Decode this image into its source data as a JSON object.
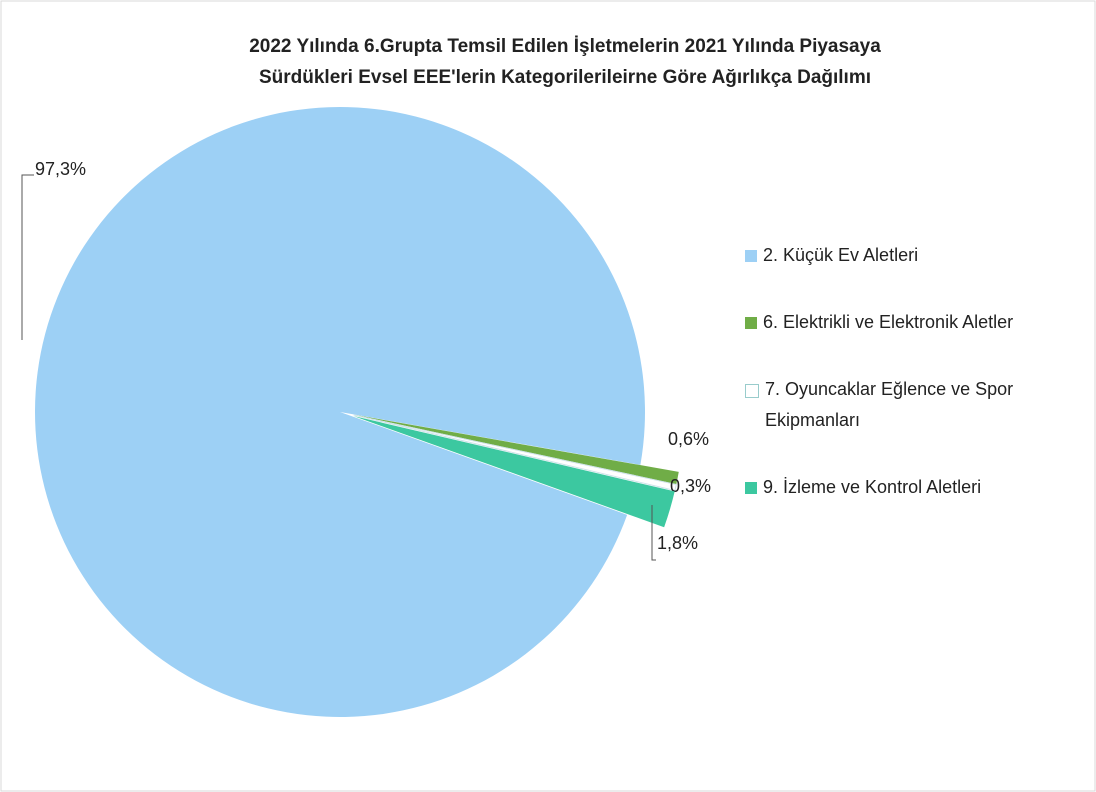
{
  "chart_data": {
    "type": "pie",
    "title": [
      "2022 Yılında 6.Grupta Temsil Edilen İşletmelerin 2021 Yılında Piyasaya",
      "Sürdükleri Evsel EEE'lerin Kategorilerileirne Göre Ağırlıkça Dağılımı"
    ],
    "categories": [
      "2. Küçük Ev Aletleri",
      "6. Elektrikli ve Elektronik Aletler",
      "7. Oyuncaklar Eğlence ve Spor Ekipmanları",
      "9. İzleme ve Kontrol Aletleri"
    ],
    "values": [
      97.3,
      0.6,
      0.3,
      1.8
    ],
    "value_labels": [
      "97,3%",
      "0,6%",
      "0,3%",
      "1,8%"
    ],
    "colors": [
      "#9dd0f5",
      "#70ad47",
      "#ffffff",
      "#3cc8a0"
    ],
    "legend": "right"
  }
}
